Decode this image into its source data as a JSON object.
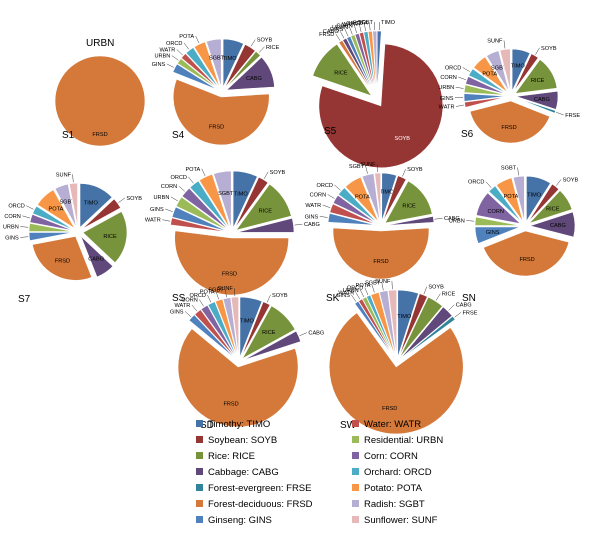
{
  "legend": [
    {
      "code": "TIMO",
      "label": "Timothy: TIMO",
      "color": "#4572A7"
    },
    {
      "code": "WATR",
      "label": "Water: WATR",
      "color": "#C0504D"
    },
    {
      "code": "SOYB",
      "label": "Soybean: SOYB",
      "color": "#963634"
    },
    {
      "code": "URBN",
      "label": "Residential: URBN",
      "color": "#9BBB59"
    },
    {
      "code": "RICE",
      "label": "Rice: RICE",
      "color": "#77933C"
    },
    {
      "code": "CORN",
      "label": "Corn: CORN",
      "color": "#8064A2"
    },
    {
      "code": "CABG",
      "label": "Cabbage: CABG",
      "color": "#60497A"
    },
    {
      "code": "ORCD",
      "label": "Orchard: ORCD",
      "color": "#4BACC6"
    },
    {
      "code": "FRSE",
      "label": "Forest-evergreen: FRSE",
      "color": "#31849B"
    },
    {
      "code": "POTA",
      "label": "Potato: POTA",
      "color": "#F79646"
    },
    {
      "code": "FRSD",
      "label": "Forest-deciduous: FRSD",
      "color": "#D4793A"
    },
    {
      "code": "SGBT",
      "label": "Radish: SGBT",
      "color": "#B7AED3"
    },
    {
      "code": "GINS",
      "label": "Ginseng: GINS",
      "color": "#4F81BD"
    },
    {
      "code": "SUNF",
      "label": "Sunflower: SUNF",
      "color": "#E6B9B8"
    }
  ],
  "chart_data": [
    {
      "type": "pie",
      "name": "S1",
      "title": "URBN",
      "slices": [
        {
          "code": "FRSD",
          "value": 100
        }
      ]
    },
    {
      "type": "pie",
      "name": "S4",
      "slices": [
        {
          "code": "TIMO",
          "value": 7
        },
        {
          "code": "SOYB",
          "value": 4
        },
        {
          "code": "RICE",
          "value": 2
        },
        {
          "code": "CABG",
          "value": 11
        },
        {
          "code": "FRSD",
          "value": 57
        },
        {
          "code": "GINS",
          "value": 3
        },
        {
          "code": "URBN",
          "value": 2
        },
        {
          "code": "WATR",
          "value": 2
        },
        {
          "code": "ORCD",
          "value": 3
        },
        {
          "code": "POTA",
          "value": 4
        },
        {
          "code": "SGBT",
          "value": 5
        }
      ]
    },
    {
      "type": "pie",
      "name": "S5",
      "slices": [
        {
          "code": "TIMO",
          "value": 1
        },
        {
          "code": "SOYB",
          "value": 76
        },
        {
          "code": "RICE",
          "value": 10
        },
        {
          "code": "FRSD",
          "value": 1
        },
        {
          "code": "CABG",
          "value": 1
        },
        {
          "code": "GINS",
          "value": 1
        },
        {
          "code": "URBN",
          "value": 1
        },
        {
          "code": "CORN",
          "value": 1
        },
        {
          "code": "WATR",
          "value": 1
        },
        {
          "code": "ORCD",
          "value": 1
        },
        {
          "code": "POTA",
          "value": 1
        },
        {
          "code": "SGBT",
          "value": 1
        }
      ]
    },
    {
      "type": "pie",
      "name": "S6",
      "slices": [
        {
          "code": "TIMO",
          "value": 7
        },
        {
          "code": "SOYB",
          "value": 3
        },
        {
          "code": "RICE",
          "value": 13
        },
        {
          "code": "CABG",
          "value": 7
        },
        {
          "code": "FRSE",
          "value": 1
        },
        {
          "code": "FRSD",
          "value": 40
        },
        {
          "code": "WATR",
          "value": 2
        },
        {
          "code": "GINS",
          "value": 3
        },
        {
          "code": "URBN",
          "value": 3
        },
        {
          "code": "CORN",
          "value": 3
        },
        {
          "code": "ORCD",
          "value": 3
        },
        {
          "code": "POTA",
          "value": 6
        },
        {
          "code": "SGBT",
          "value": 5
        },
        {
          "code": "SUNF",
          "value": 4
        }
      ]
    },
    {
      "type": "pie",
      "name": "S7",
      "slices": [
        {
          "code": "TIMO",
          "value": 13
        },
        {
          "code": "SOYB",
          "value": 4
        },
        {
          "code": "RICE",
          "value": 20
        },
        {
          "code": "CABG",
          "value": 7
        },
        {
          "code": "FRSD",
          "value": 28
        },
        {
          "code": "GINS",
          "value": 3
        },
        {
          "code": "URBN",
          "value": 3
        },
        {
          "code": "CORN",
          "value": 3
        },
        {
          "code": "ORCD",
          "value": 3
        },
        {
          "code": "POTA",
          "value": 8
        },
        {
          "code": "SGBT",
          "value": 5
        },
        {
          "code": "SUNF",
          "value": 3
        }
      ]
    },
    {
      "type": "pie",
      "name": "SS",
      "slices": [
        {
          "code": "TIMO",
          "value": 7
        },
        {
          "code": "SOYB",
          "value": 3
        },
        {
          "code": "RICE",
          "value": 11
        },
        {
          "code": "CABG",
          "value": 4
        },
        {
          "code": "FRSD",
          "value": 52
        },
        {
          "code": "WATR",
          "value": 2
        },
        {
          "code": "GINS",
          "value": 3
        },
        {
          "code": "URBN",
          "value": 3
        },
        {
          "code": "CORN",
          "value": 3
        },
        {
          "code": "ORCD",
          "value": 3
        },
        {
          "code": "POTA",
          "value": 4
        },
        {
          "code": "SGBT",
          "value": 5
        }
      ]
    },
    {
      "type": "pie",
      "name": "SK",
      "slices": [
        {
          "code": "TIMO",
          "value": 5
        },
        {
          "code": "SOYB",
          "value": 3
        },
        {
          "code": "RICE",
          "value": 14
        },
        {
          "code": "CABG",
          "value": 2
        },
        {
          "code": "FRSD",
          "value": 52
        },
        {
          "code": "GINS",
          "value": 3
        },
        {
          "code": "WATR",
          "value": 3
        },
        {
          "code": "CORN",
          "value": 3
        },
        {
          "code": "ORCD",
          "value": 3
        },
        {
          "code": "POTA",
          "value": 6
        },
        {
          "code": "SGBT",
          "value": 4
        },
        {
          "code": "SUNF",
          "value": 2
        }
      ]
    },
    {
      "type": "pie",
      "name": "SN",
      "slices": [
        {
          "code": "TIMO",
          "value": 9
        },
        {
          "code": "SOYB",
          "value": 3
        },
        {
          "code": "RICE",
          "value": 8
        },
        {
          "code": "CABG",
          "value": 9
        },
        {
          "code": "FRSD",
          "value": 40
        },
        {
          "code": "GINS",
          "value": 6
        },
        {
          "code": "URBN",
          "value": 3
        },
        {
          "code": "CORN",
          "value": 9
        },
        {
          "code": "ORCD",
          "value": 3
        },
        {
          "code": "POTA",
          "value": 6
        },
        {
          "code": "SGBT",
          "value": 4
        }
      ]
    },
    {
      "type": "pie",
      "name": "SD",
      "slices": [
        {
          "code": "TIMO",
          "value": 6
        },
        {
          "code": "SOYB",
          "value": 2
        },
        {
          "code": "RICE",
          "value": 9
        },
        {
          "code": "CABG",
          "value": 3
        },
        {
          "code": "FRSD",
          "value": 66
        },
        {
          "code": "GINS",
          "value": 2
        },
        {
          "code": "WATR",
          "value": 2
        },
        {
          "code": "CORN",
          "value": 2
        },
        {
          "code": "ORCD",
          "value": 2
        },
        {
          "code": "POTA",
          "value": 2
        },
        {
          "code": "SGBT",
          "value": 2
        },
        {
          "code": "SUNF",
          "value": 2
        }
      ]
    },
    {
      "type": "pie",
      "name": "SW",
      "slices": [
        {
          "code": "TIMO",
          "value": 5
        },
        {
          "code": "SOYB",
          "value": 2
        },
        {
          "code": "RICE",
          "value": 4
        },
        {
          "code": "CABG",
          "value": 3
        },
        {
          "code": "FRSE",
          "value": 1
        },
        {
          "code": "FRSD",
          "value": 75
        },
        {
          "code": "GINS",
          "value": 1
        },
        {
          "code": "WATR",
          "value": 1
        },
        {
          "code": "URBN",
          "value": 1
        },
        {
          "code": "ORCD",
          "value": 1
        },
        {
          "code": "POTA",
          "value": 2
        },
        {
          "code": "SGBT",
          "value": 2
        },
        {
          "code": "SUNF",
          "value": 2
        }
      ]
    }
  ]
}
